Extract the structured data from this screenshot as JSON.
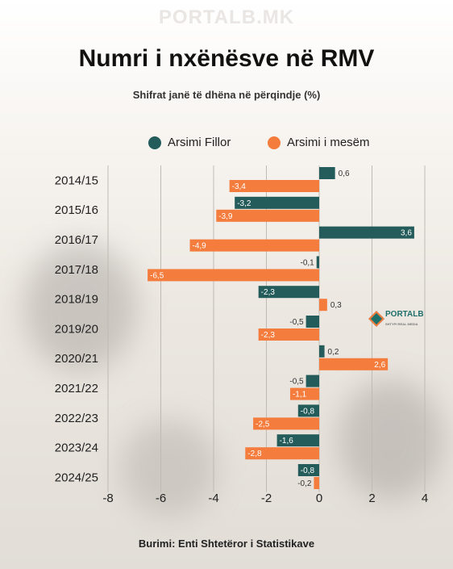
{
  "watermark": "PORTALB.MK",
  "logo": {
    "name": "PORTALB",
    "tagline": "SHTYPI REAL MEDIA"
  },
  "colors": {
    "fillor": "#235c5a",
    "mesem": "#f47c3c"
  },
  "chart_data": {
    "type": "bar",
    "orientation": "horizontal",
    "title": "Numri i nxënësve në RMV",
    "subtitle": "Shifrat janë të dhëna në përqindje (%)",
    "categories": [
      "2014/15",
      "2015/16",
      "2016/17",
      "2017/18",
      "2018/19",
      "2019/20",
      "2020/21",
      "2021/22",
      "2022/23",
      "2023/24",
      "2024/25"
    ],
    "series": [
      {
        "name": "Arsimi Fillor",
        "values": [
          0.6,
          -3.2,
          3.6,
          -0.1,
          -2.3,
          -0.5,
          0.2,
          -0.5,
          -0.8,
          -1.6,
          -0.8
        ],
        "labels": [
          "0,6",
          "-3,2",
          "3,6",
          "-0,1",
          "-2,3",
          "-0,5",
          "0,2",
          "-0,5",
          "-0,8",
          "-1,6",
          "-0,8"
        ]
      },
      {
        "name": "Arsimi i mesëm",
        "values": [
          -3.4,
          -3.9,
          -4.9,
          -6.5,
          0.3,
          -2.3,
          2.6,
          -1.1,
          -2.5,
          -2.8,
          -0.2
        ],
        "labels": [
          "-3,4",
          "-3,9",
          "-4,9",
          "-6,5",
          "0,3",
          "-2,3",
          "2,6",
          "-1,1",
          "-2,5",
          "-2,8",
          "-0,2"
        ]
      }
    ],
    "xlim": [
      -8,
      4
    ],
    "xticks": [
      -8,
      -6,
      -4,
      -2,
      0,
      2,
      4
    ],
    "xtick_labels": [
      "-8",
      "-6",
      "-4",
      "-2",
      "0",
      "2",
      "4"
    ],
    "grid": true,
    "legend": "top-center",
    "source": "Burimi: Enti Shtetëror i Statistikave"
  }
}
